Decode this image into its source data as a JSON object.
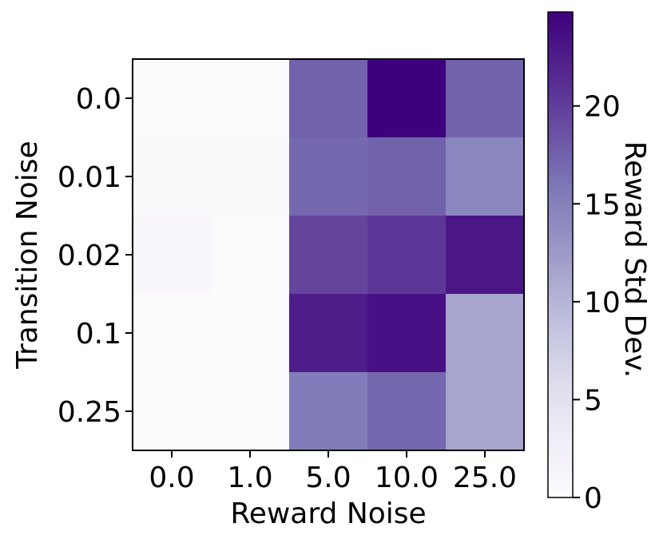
{
  "chart_data": {
    "type": "heatmap",
    "title": "",
    "xlabel": "Reward Noise",
    "ylabel": "Transition Noise",
    "x_categories": [
      "0.0",
      "1.0",
      "5.0",
      "10.0",
      "25.0"
    ],
    "y_categories": [
      "0.0",
      "0.01",
      "0.02",
      "0.1",
      "0.25"
    ],
    "values": [
      [
        0.3,
        0.3,
        17.5,
        24.8,
        17.5
      ],
      [
        0.5,
        0.4,
        17.0,
        17.5,
        14.5
      ],
      [
        0.8,
        0.2,
        19.5,
        20.5,
        23.0
      ],
      [
        0.3,
        0.0,
        22.5,
        23.5,
        11.5
      ],
      [
        0.3,
        0.3,
        15.5,
        17.0,
        11.5
      ]
    ],
    "colorbar": {
      "label": "Reward Std Dev.",
      "range": [
        0,
        24.8
      ],
      "ticks": [
        "0",
        "5",
        "10",
        "15",
        "20"
      ],
      "colormap": "Purples"
    }
  }
}
